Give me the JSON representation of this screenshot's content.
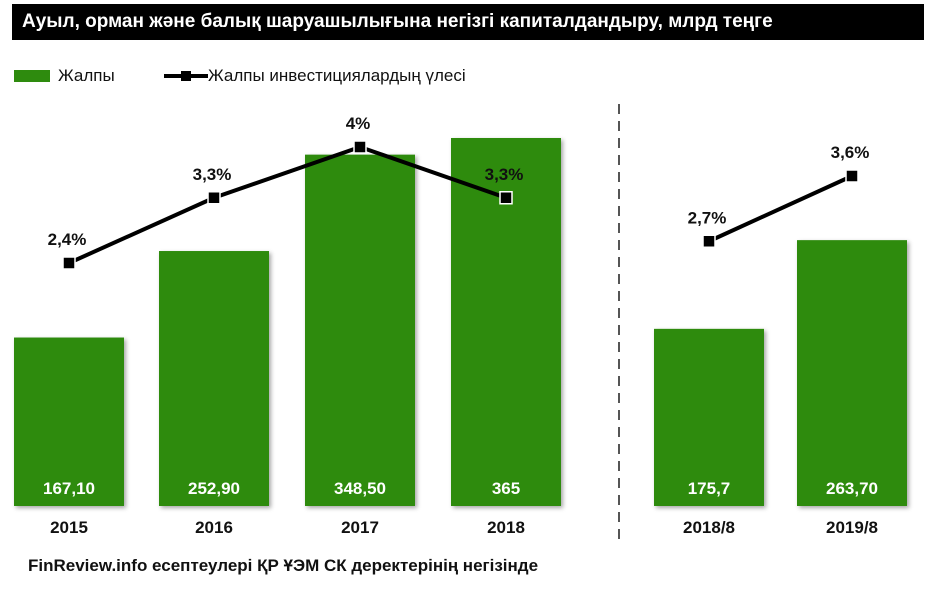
{
  "title": "Ауыл, орман және балық шаруашылығына негізгі капиталдандыру, млрд теңге",
  "source": "FinReview.info есептеулері ҚР ҰЭМ СК деректерінің негізінде",
  "colors": {
    "bar": "#2e8b0e",
    "line": "#000000",
    "divider": "#555555"
  },
  "chart_data": [
    {
      "type": "bar",
      "categories": [
        "2015",
        "2016",
        "2017",
        "2018"
      ],
      "series": [
        {
          "name": "Жалпы",
          "type": "bar",
          "values": [
            167.1,
            252.9,
            348.5,
            365
          ],
          "labels": [
            "167,10",
            "252,90",
            "348,50",
            "365"
          ]
        },
        {
          "name": "Жалпы инвестициялардың үлесі",
          "type": "line",
          "values": [
            2.4,
            3.3,
            4.0,
            3.3
          ],
          "labels": [
            "2,4%",
            "3,3%",
            "4%",
            "3,3%"
          ]
        }
      ],
      "grid": false,
      "legend": "top-left"
    },
    {
      "type": "bar",
      "categories": [
        "2018/8",
        "2019/8"
      ],
      "series": [
        {
          "name": "Жалпы",
          "type": "bar",
          "values": [
            175.7,
            263.7
          ],
          "labels": [
            "175,7",
            "263,70"
          ]
        },
        {
          "name": "Жалпы инвестициялардың үлесі",
          "type": "line",
          "values": [
            2.7,
            3.6
          ],
          "labels": [
            "2,7%",
            "3,6%"
          ]
        }
      ],
      "grid": false
    }
  ]
}
